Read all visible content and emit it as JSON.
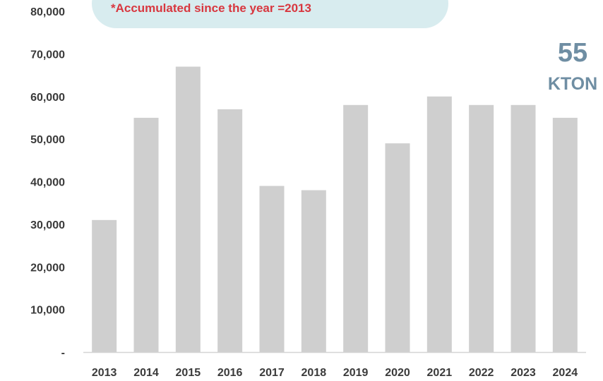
{
  "note": "*Accumulated since the year =2013",
  "badge": {
    "number": "55",
    "unit": "KTON"
  },
  "colors": {
    "bar": "#cfcfcf",
    "axis_text": "#3a3a3a",
    "note": "#d8373f",
    "note_bg": "#d8ecef",
    "badge": "#6f8ea3"
  },
  "chart_data": {
    "type": "bar",
    "categories": [
      "2013",
      "2014",
      "2015",
      "2016",
      "2017",
      "2018",
      "2019",
      "2020",
      "2021",
      "2022",
      "2023",
      "2024"
    ],
    "values": [
      31000,
      55000,
      67000,
      57000,
      39000,
      38000,
      58000,
      49000,
      60000,
      58000,
      58000,
      55000
    ],
    "yticks": [
      0,
      10000,
      20000,
      30000,
      40000,
      50000,
      60000,
      70000,
      80000
    ],
    "ytick_labels": [
      "-",
      "10,000",
      "20,000",
      "30,000",
      "40,000",
      "50,000",
      "60,000",
      "70,000",
      "80,000"
    ],
    "ylim": [
      0,
      80000
    ],
    "grid": false,
    "legend": "none"
  }
}
